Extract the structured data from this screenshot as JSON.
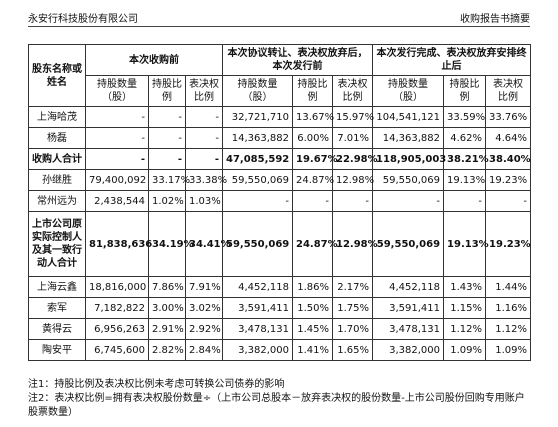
{
  "header": {
    "left": "永安行科技股份有限公司",
    "right": "收购报告书摘要"
  },
  "table": {
    "name_header": "股东名称或姓名",
    "header_groups": [
      "本次收购前",
      "本次协议转让、表决权放弃后，本次发行前",
      "本次发行完成、表决权放弃安排终止后"
    ],
    "column_headers": [
      "持股数量（股）",
      "持股比例",
      "表决权比例",
      "持股数量（股）",
      "持股比例",
      "表决权比例",
      "持股数量（股）",
      "持股比例",
      "表决权比例"
    ],
    "rows": [
      [
        "上海哈茂",
        "-",
        "-",
        "-",
        "32,721,710",
        "13.67%",
        "15.97%",
        "104,541,121",
        "33.59%",
        "33.76%"
      ],
      [
        "杨磊",
        "-",
        "-",
        "-",
        "14,363,882",
        "6.00%",
        "7.01%",
        "14,363,882",
        "4.62%",
        "4.64%"
      ],
      [
        "收购人合计",
        "-",
        "-",
        "-",
        "47,085,592",
        "19.67%",
        "22.98%",
        "118,905,003",
        "38.21%",
        "38.40%"
      ],
      [
        "孙继胜",
        "79,400,092",
        "33.17%",
        "33.38%",
        "59,550,069",
        "24.87%",
        "12.98%",
        "59,550,069",
        "19.13%",
        "19.23%"
      ],
      [
        "常州远为",
        "2,438,544",
        "1.02%",
        "1.03%",
        "-",
        "-",
        "-",
        "-",
        "-",
        "-"
      ],
      [
        "上市公司原实际控制人及其一致行动人合计",
        "81,838,636",
        "34.19%",
        "34.41%",
        "59,550,069",
        "24.87%",
        "12.98%",
        "59,550,069",
        "19.13%",
        "19.23%"
      ],
      [
        "上海云鑫",
        "18,816,000",
        "7.86%",
        "7.91%",
        "4,452,118",
        "1.86%",
        "2.17%",
        "4,452,118",
        "1.43%",
        "1.44%"
      ],
      [
        "索军",
        "7,182,822",
        "3.00%",
        "3.02%",
        "3,591,411",
        "1.50%",
        "1.75%",
        "3,591,411",
        "1.15%",
        "1.16%"
      ],
      [
        "黄得云",
        "6,956,263",
        "2.91%",
        "2.92%",
        "3,478,131",
        "1.45%",
        "1.70%",
        "3,478,131",
        "1.12%",
        "1.12%"
      ],
      [
        "陶安平",
        "6,745,600",
        "2.82%",
        "2.84%",
        "3,382,000",
        "1.41%",
        "1.65%",
        "3,382,000",
        "1.09%",
        "1.09%"
      ]
    ]
  },
  "notes": [
    "注1：持股比例及表决权比例未考虑可转换公司债券的影响",
    "注2：表决权比例=拥有表决权股份数量÷（上市公司总股本－放弃表决权的股份数量-上市公司股份回购专用账户股票数量）"
  ]
}
